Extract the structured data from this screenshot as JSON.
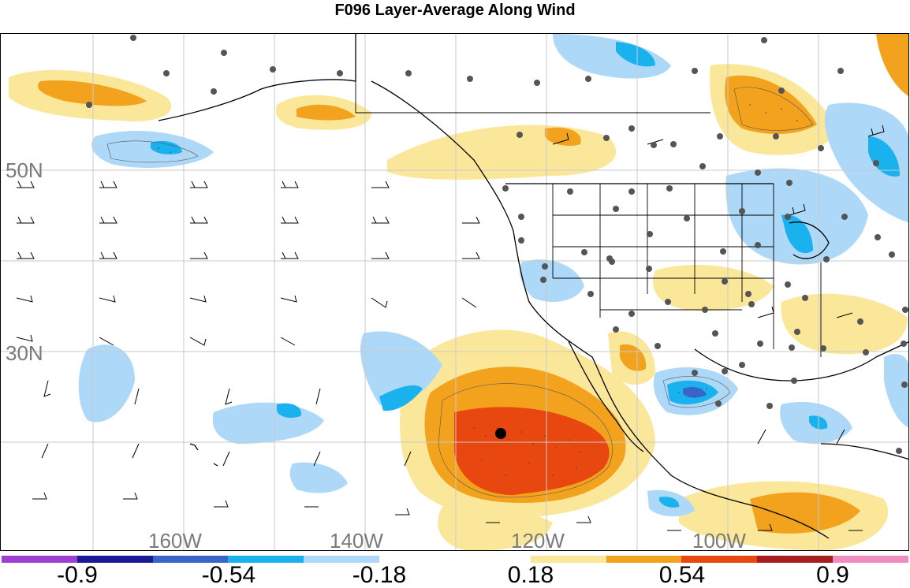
{
  "title": "F096 Layer-Average Along Wind",
  "lat_labels": [
    "50N",
    "30N"
  ],
  "lon_labels": [
    "160W",
    "140W",
    "120W",
    "100W"
  ],
  "colorbar": {
    "colors": [
      "#9c3fd2",
      "#1a1a96",
      "#3a64c8",
      "#1ab2ee",
      "#aed8f7",
      "#ffffff",
      "#ffffff",
      "#fbe79a",
      "#f3a21e",
      "#e8480f",
      "#a81e1e",
      "#f08cbe"
    ],
    "tick_labels": [
      "-0.9",
      "-0.54",
      "-0.18",
      "0.18",
      "0.54",
      "0.9"
    ]
  },
  "legend_colors": {
    "light_blue": "#aed8f7",
    "mid_blue": "#1ab2ee",
    "dark_blue": "#3a64c8",
    "light_yellow": "#fbe79a",
    "orange": "#f3a21e",
    "red_orange": "#e8480f",
    "station_dot": "#555555"
  }
}
